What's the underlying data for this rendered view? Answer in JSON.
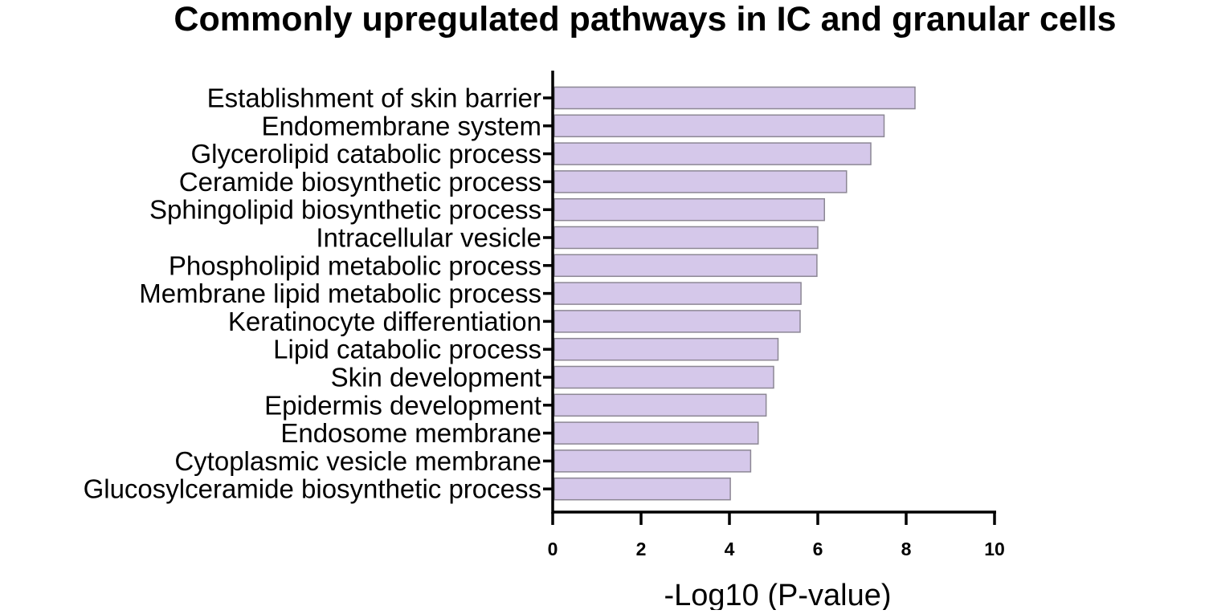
{
  "chart_data": {
    "type": "bar",
    "orientation": "horizontal",
    "title": "Commonly upregulated pathways in IC and granular cells",
    "xlabel": "-Log10 (P-value)",
    "ylabel": "",
    "xlim": [
      0,
      10
    ],
    "xticks": [
      0,
      2,
      4,
      6,
      8,
      10
    ],
    "bar_color": "#d5c8ea",
    "bar_edge_color": "#8c8794",
    "grid": false,
    "legend": "none",
    "categories": [
      "Establishment of skin barrier",
      "Endomembrane system",
      "Glycerolipid catabolic process",
      "Ceramide biosynthetic process",
      "Sphingolipid biosynthetic process",
      "Intracellular vesicle",
      "Phospholipid metabolic process",
      "Membrane lipid metabolic process",
      "Keratinocyte differentiation",
      "Lipid catabolic process",
      "Skin development",
      "Epidermis development",
      "Endosome membrane",
      "Cytoplasmic vesicle membrane",
      "Glucosylceramide biosynthetic process"
    ],
    "values": [
      8.2,
      7.5,
      7.2,
      6.65,
      6.15,
      6.0,
      5.98,
      5.62,
      5.6,
      5.1,
      5.0,
      4.83,
      4.65,
      4.48,
      4.02
    ]
  }
}
